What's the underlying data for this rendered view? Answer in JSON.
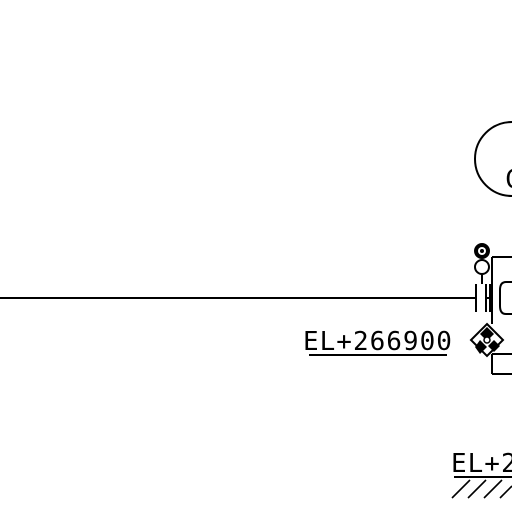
{
  "drawing": {
    "elevation_labels": [
      {
        "id": "elevation-label-main",
        "text": "EL+266900"
      },
      {
        "id": "elevation-label-lower",
        "text": "EL+2"
      }
    ],
    "partial_bubble_text": "C",
    "symbols": [
      "pipe-line-icon",
      "flange-icon",
      "instrument-tap-icon",
      "valve-diamond-icon",
      "ground-hatch-icon"
    ]
  }
}
